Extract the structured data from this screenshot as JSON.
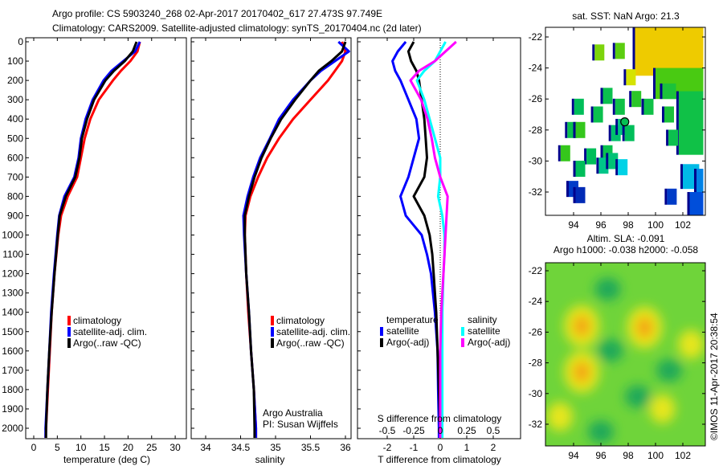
{
  "title_line1": "Argo profile: CS 5903240_268 02-Apr-2017 20170402_617 27.473S 97.749E",
  "title_line2": "Climatology: CARS2009. Satellite-adjusted climatology: synTS_20170404.nc (2d later)",
  "colors": {
    "climatology": "#ff0000",
    "satellite": "#0000ff",
    "argo": "#000000",
    "sal_satellite": "#00ffff",
    "sal_argo": "#ff00ff"
  },
  "chart_data": [
    {
      "type": "line",
      "xlabel": "temperature (deg C)",
      "ylabel": "",
      "xlim": [
        -2,
        32
      ],
      "ylim": [
        2070,
        0
      ],
      "xticks": [
        "0",
        "5",
        "10",
        "15",
        "20",
        "25",
        "30"
      ],
      "yticks": [
        "0",
        "100",
        "200",
        "300",
        "400",
        "500",
        "600",
        "700",
        "800",
        "900",
        "1000",
        "1100",
        "1200",
        "1300",
        "1400",
        "1500",
        "1600",
        "1700",
        "1800",
        "1900",
        "2000"
      ],
      "legend": [
        "climatology",
        "satellite-adj. clim.",
        "Argo(..raw -QC)"
      ],
      "depth": [
        0,
        50,
        100,
        150,
        200,
        300,
        400,
        500,
        600,
        700,
        800,
        900,
        1000,
        1200,
        1400,
        1600,
        1800,
        2000,
        2050
      ],
      "series": [
        {
          "name": "climatology",
          "values": [
            22.5,
            22,
            20.5,
            18.5,
            16.8,
            13.8,
            12,
            10.8,
            10,
            9.2,
            7.2,
            5.8,
            5.2,
            4.4,
            3.8,
            3.4,
            3,
            2.6,
            2.5
          ]
        },
        {
          "name": "satellite-adj. clim.",
          "values": [
            22.5,
            21.5,
            19,
            16.5,
            14.8,
            12.5,
            11,
            10,
            9.5,
            8.6,
            6.5,
            5.4,
            5,
            4.3,
            3.7,
            3.3,
            2.9,
            2.5,
            2.5
          ]
        },
        {
          "name": "Argo(..raw -QC)",
          "values": [
            21.8,
            21,
            19.3,
            17,
            15.2,
            12.8,
            11.3,
            10.2,
            9.7,
            8.8,
            6.8,
            5.5,
            5.1,
            4.4,
            3.8,
            3.3,
            2.9,
            2.6,
            2.6
          ]
        }
      ]
    },
    {
      "type": "line",
      "xlabel": "salinity",
      "xlim": [
        33.8,
        36.1
      ],
      "ylim": [
        2070,
        0
      ],
      "xticks": [
        "34",
        "34.5",
        "35",
        "35.5",
        "36"
      ],
      "legend": [
        "climatology",
        "satellite-adj. clim.",
        "Argo(..raw -QC)"
      ],
      "annotation": [
        "Argo Australia",
        "PI: Susan Wijffels"
      ],
      "depth": [
        0,
        50,
        100,
        150,
        200,
        300,
        400,
        500,
        600,
        700,
        800,
        900,
        1000,
        1200,
        1400,
        1600,
        1800,
        2000,
        2050
      ],
      "series": [
        {
          "name": "climatology",
          "values": [
            35.95,
            36.0,
            35.95,
            35.85,
            35.75,
            35.5,
            35.25,
            35.05,
            34.88,
            34.75,
            34.64,
            34.57,
            34.56,
            34.58,
            34.61,
            34.65,
            34.69,
            34.72,
            34.72
          ]
        },
        {
          "name": "satellite-adj. clim.",
          "values": [
            35.9,
            36.05,
            35.85,
            35.65,
            35.5,
            35.25,
            35.05,
            34.92,
            34.78,
            34.68,
            34.6,
            34.54,
            34.55,
            34.58,
            34.62,
            34.65,
            34.69,
            34.72,
            34.72
          ]
        },
        {
          "name": "Argo(..raw -QC)",
          "values": [
            36.0,
            35.95,
            35.8,
            35.62,
            35.5,
            35.28,
            35.08,
            34.93,
            34.8,
            34.7,
            34.62,
            34.56,
            34.56,
            34.58,
            34.62,
            34.65,
            34.69,
            34.7,
            34.7
          ]
        }
      ]
    },
    {
      "type": "line",
      "xlabel": "T difference from climatology",
      "xlabel2": "S difference from climatology",
      "xlim": [
        -3.1,
        3.1
      ],
      "ylim": [
        2070,
        0
      ],
      "xticks": [
        "-2",
        "-1",
        "0",
        "1",
        "2"
      ],
      "xticks2": [
        "-0.5",
        "-0.25",
        "0",
        "0.25",
        "0.5"
      ],
      "legend_temperature": {
        "title": "temperature",
        "items": [
          "satellite",
          "Argo(-adj)"
        ]
      },
      "legend_salinity": {
        "title": "salinity",
        "items": [
          "satellite",
          "Argo(-adj)"
        ]
      },
      "depth": [
        0,
        50,
        100,
        150,
        200,
        300,
        400,
        500,
        600,
        700,
        800,
        900,
        1000,
        1100,
        1200,
        1400,
        1600,
        1800,
        2000,
        2050
      ],
      "series": [
        {
          "name": "T satellite",
          "unit": "T",
          "values": [
            -1.3,
            -1.6,
            -1.8,
            -1.7,
            -1.5,
            -1.2,
            -0.9,
            -0.8,
            -1.0,
            -1.2,
            -1.5,
            -1.3,
            -0.7,
            -0.5,
            -0.35,
            -0.2,
            -0.1,
            -0.08,
            -0.05,
            -0.05
          ]
        },
        {
          "name": "T Argo(-adj)",
          "unit": "T",
          "values": [
            -1.0,
            -1.2,
            -1.1,
            -0.9,
            -0.8,
            -0.7,
            -0.6,
            -0.55,
            -0.5,
            -0.6,
            -1.0,
            -0.6,
            -0.4,
            -0.3,
            -0.25,
            -0.15,
            -0.1,
            -0.05,
            0,
            0
          ]
        },
        {
          "name": "S satellite",
          "unit": "S",
          "values": [
            0.05,
            0.0,
            -0.05,
            -0.15,
            -0.22,
            -0.15,
            -0.1,
            -0.05,
            0,
            0.0,
            -0.02,
            0.02,
            0.04,
            0.04,
            0.03,
            0.02,
            0.02,
            0.02,
            0.02,
            0.02
          ]
        },
        {
          "name": "S Argo(-adj)",
          "unit": "S",
          "values": [
            0.15,
            0.05,
            -0.05,
            -0.2,
            -0.28,
            -0.18,
            -0.12,
            -0.08,
            -0.05,
            0,
            0.07,
            0.06,
            0.05,
            0.04,
            0.03,
            0.01,
            0,
            0,
            0,
            0
          ]
        }
      ]
    },
    {
      "type": "heatmap",
      "title": "sat. SST: NaN Argo: 21.3",
      "xlim": [
        92.2,
        103.5
      ],
      "ylim": [
        -33.5,
        -21.4
      ],
      "xticks": [
        "94",
        "96",
        "98",
        "100",
        "102"
      ],
      "yticks": [
        "-22",
        "-24",
        "-26",
        "-28",
        "-30",
        "-32"
      ],
      "argo_position": [
        97.749,
        -27.473
      ],
      "cells": [
        [
          95.9,
          -23,
          21.5
        ],
        [
          97.4,
          -22.9,
          21.3
        ],
        [
          98.2,
          -24.6,
          22
        ],
        [
          96.5,
          -25.8,
          20.2
        ],
        [
          98.6,
          -26,
          20.8
        ],
        [
          94.4,
          -26.5,
          20
        ],
        [
          95.8,
          -27,
          20.2
        ],
        [
          97.4,
          -26.5,
          20.3
        ],
        [
          99.5,
          -26.5,
          20.3
        ],
        [
          101,
          -27,
          20.5
        ],
        [
          93.9,
          -28,
          20.2
        ],
        [
          94.5,
          -28,
          21
        ],
        [
          97.1,
          -28.2,
          19.8
        ],
        [
          97.6,
          -27.8,
          19.6
        ],
        [
          98.1,
          -28.2,
          20
        ],
        [
          101.3,
          -28.5,
          20.2
        ],
        [
          93.4,
          -29.5,
          21
        ],
        [
          95.3,
          -29.7,
          20
        ],
        [
          96.5,
          -29.5,
          20.2
        ],
        [
          96.2,
          -30.3,
          19.5
        ],
        [
          96.9,
          -30,
          19.7
        ],
        [
          97.6,
          -30.4,
          18.5
        ],
        [
          94.5,
          -30.5,
          20
        ],
        [
          94,
          -31.8,
          16.5
        ],
        [
          94.5,
          -32.2,
          16.2
        ],
        [
          101.2,
          -32.3,
          16.5
        ]
      ],
      "region_values": {
        "north_east": 22.5,
        "east": 20.3,
        "south_east": 17.5
      }
    },
    {
      "type": "heatmap",
      "title_line1": "Altim. SLA: -0.091",
      "title_line2": "Argo h1000: -0.038 h2000: -0.058",
      "xlim": [
        92.2,
        103.5
      ],
      "ylim": [
        -33.5,
        -21.4
      ],
      "xticks": [
        "94",
        "96",
        "98",
        "100",
        "102"
      ],
      "yticks": [
        "-22",
        "-24",
        "-26",
        "-28",
        "-30",
        "-32"
      ],
      "highs": [
        [
          94.6,
          -25.6,
          0.2
        ],
        [
          99.2,
          -25.7,
          0.2
        ],
        [
          94.6,
          -28.6,
          0.18
        ],
        [
          102.6,
          -26.8,
          0.12
        ],
        [
          100.5,
          -31,
          0.08
        ],
        [
          93,
          -31.5,
          0.08
        ]
      ],
      "lows": [
        [
          96.5,
          -23.2,
          -0.1
        ],
        [
          96.7,
          -27.2,
          -0.08
        ],
        [
          98.7,
          -30.2,
          -0.1
        ],
        [
          101,
          -28.5,
          -0.08
        ],
        [
          96,
          -32.5,
          -0.08
        ]
      ]
    }
  ],
  "credit": "©IMOS 11-Apr-2017 20:38:54"
}
